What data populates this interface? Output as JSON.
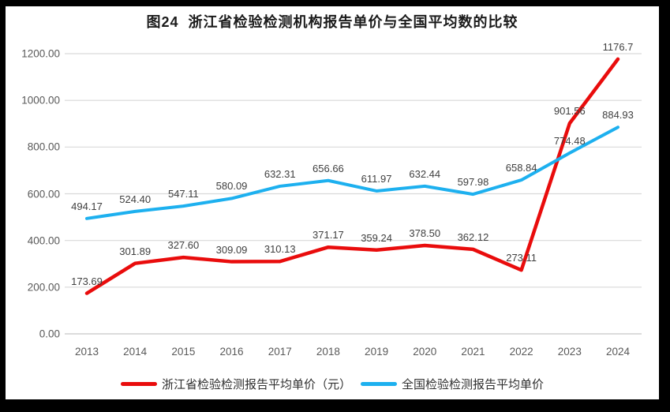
{
  "chart_data": {
    "type": "line",
    "title": "图24  浙江省检验检测机构报告单价与全国平均数的比较",
    "categories": [
      "2013",
      "2014",
      "2015",
      "2016",
      "2017",
      "2018",
      "2019",
      "2020",
      "2021",
      "2022",
      "2023",
      "2024"
    ],
    "series": [
      {
        "name": "浙江省检验检测报告平均单价（元）",
        "color": "#e90c0c",
        "values": [
          173.69,
          301.89,
          327.6,
          309.09,
          310.13,
          371.17,
          359.24,
          378.5,
          362.12,
          273.11,
          901.56,
          1176.7
        ],
        "labels": [
          "173.69",
          "301.89",
          "327.60",
          "309.09",
          "310.13",
          "371.17",
          "359.24",
          "378.50",
          "362.12",
          "273.11",
          "901.56",
          "1176.7"
        ]
      },
      {
        "name": "全国检验检测报告平均单价",
        "color": "#1db0ef",
        "values": [
          494.17,
          524.4,
          547.11,
          580.09,
          632.31,
          656.66,
          611.97,
          632.44,
          597.98,
          658.84,
          774.48,
          884.93
        ],
        "labels": [
          "494.17",
          "524.40",
          "547.11",
          "580.09",
          "632.31",
          "656.66",
          "611.97",
          "632.44",
          "597.98",
          "658.84",
          "774.48",
          "884.93"
        ]
      }
    ],
    "y_ticks": [
      "1200.00",
      "1000.00",
      "800.00",
      "600.00",
      "400.00",
      "200.00",
      "0.00"
    ],
    "ylim": [
      0,
      1200
    ],
    "y_step": 200,
    "grid": true,
    "legend_position": "bottom",
    "grid_color": "#d9d9d9",
    "axis_line_color": "#c6c6c6"
  }
}
